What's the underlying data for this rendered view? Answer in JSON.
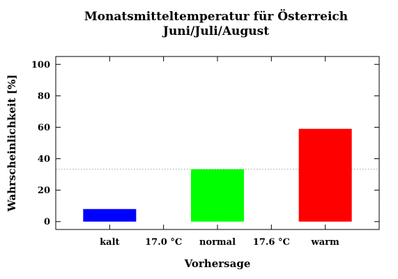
{
  "chart_data": {
    "type": "bar",
    "title": [
      "Monatsmitteltemperatur für Österreich",
      "Juni/Juli/August"
    ],
    "xlabel": "Vorhersage",
    "ylabel": "Wahrscheinlichkeit [%]",
    "ylim": [
      -5,
      105
    ],
    "yticks": [
      0,
      20,
      40,
      60,
      80,
      100
    ],
    "categories": [
      "kalt",
      "normal",
      "warm"
    ],
    "values": [
      8,
      33.3,
      59
    ],
    "colors": [
      "#0000ff",
      "#00ff00",
      "#ff0000"
    ],
    "threshold_labels": [
      "17.0 °C",
      "17.6 °C"
    ],
    "reference_line": 33.3,
    "grid": false,
    "legend": "none"
  }
}
